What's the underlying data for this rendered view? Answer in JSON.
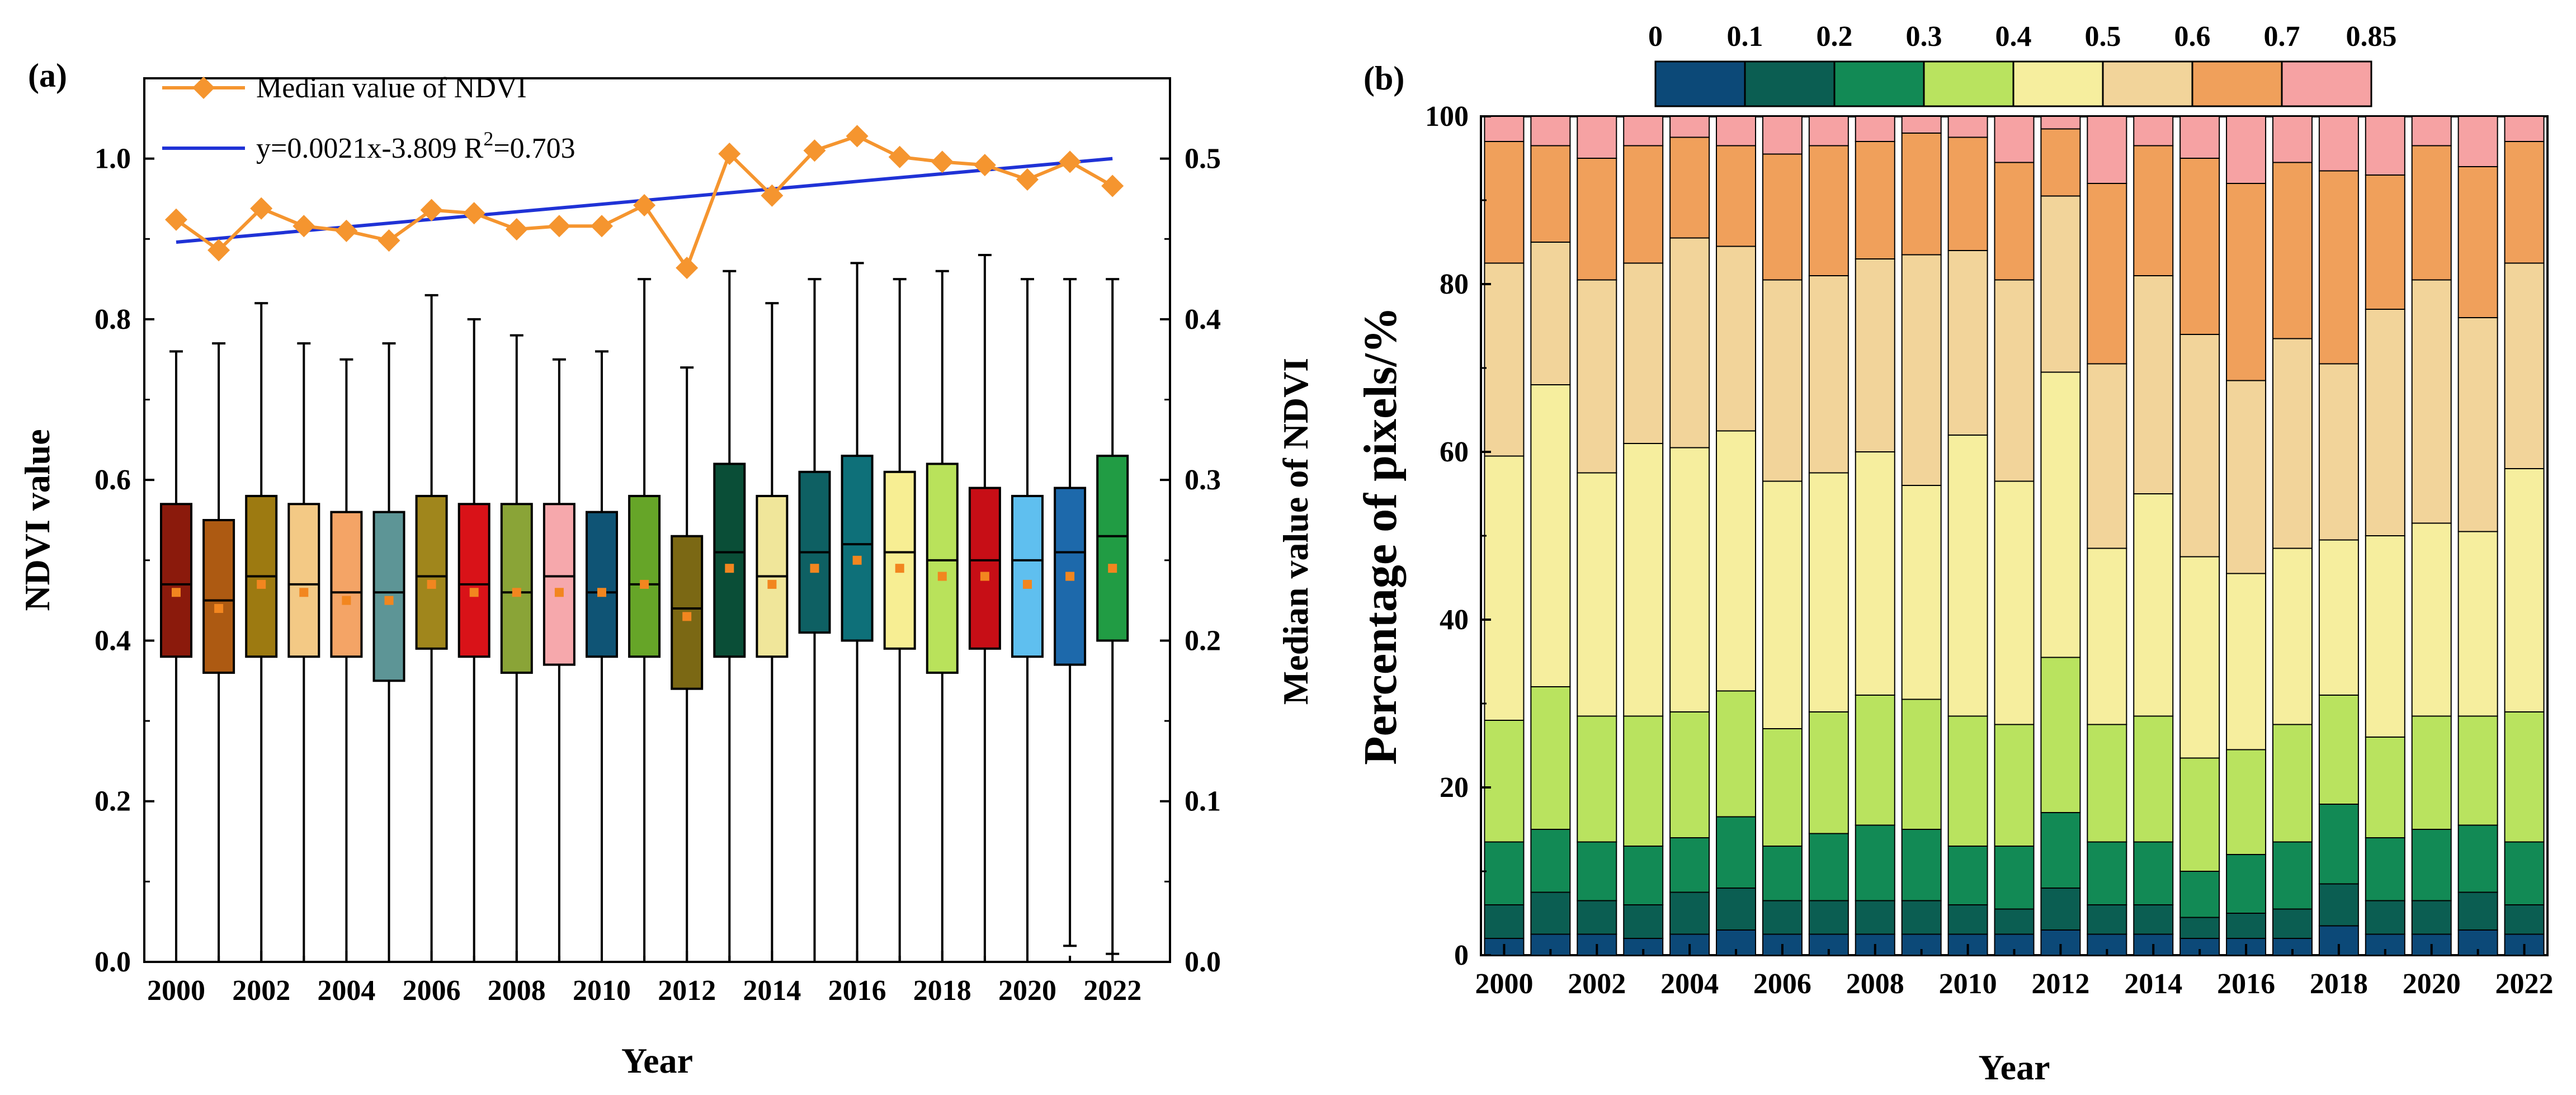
{
  "colors": {
    "median_line": "#F5952F",
    "trend_line": "#1F32D6",
    "mean_marker": "#F2861F",
    "box_fill": [
      "#8B1A0C",
      "#AD5A12",
      "#9D7A11",
      "#F3C985",
      "#F4A466",
      "#5D9596",
      "#A0861C",
      "#D91218",
      "#8AA437",
      "#F6A8AC",
      "#0F5475",
      "#66A528",
      "#7B6814",
      "#0A4E37",
      "#F0E69A",
      "#0E6063",
      "#0E7079",
      "#F7EE93",
      "#B9E25B",
      "#C70E16",
      "#5FBFEF",
      "#1D69AB",
      "#219C44"
    ],
    "class_fill": [
      "#0C4978",
      "#0B5E52",
      "#128A55",
      "#B9E35F",
      "#F6EE9E",
      "#F2D49A",
      "#F0A05B",
      "#F6A2A3"
    ]
  },
  "chart_data": [
    {
      "panel": "(a)",
      "type": "boxplot",
      "xlabel": "Year",
      "ylabel_left": "NDVI value",
      "ylabel_right": "Median value of NDVI",
      "ylim_left": [
        0.0,
        1.1
      ],
      "ylim_right": [
        0.0,
        0.55
      ],
      "yticks_left": [
        "0.0",
        "0.2",
        "0.4",
        "0.6",
        "0.8",
        "1.0"
      ],
      "yticks_right": [
        "0.0",
        "0.1",
        "0.2",
        "0.3",
        "0.4",
        "0.5"
      ],
      "xtick_labels": [
        "2000",
        "2002",
        "2004",
        "2006",
        "2008",
        "2010",
        "2012",
        "2014",
        "2016",
        "2018",
        "2020",
        "2022"
      ],
      "years": [
        2000,
        2001,
        2002,
        2003,
        2004,
        2005,
        2006,
        2007,
        2008,
        2009,
        2010,
        2011,
        2012,
        2013,
        2014,
        2015,
        2016,
        2017,
        2018,
        2019,
        2020,
        2021,
        2022
      ],
      "whisker_low": [
        0.0,
        0.0,
        0.0,
        0.0,
        0.0,
        0.0,
        0.0,
        0.0,
        0.0,
        0.0,
        0.0,
        0.0,
        0.0,
        0.0,
        0.0,
        0.0,
        0.0,
        0.0,
        0.0,
        0.0,
        0.0,
        0.02,
        0.01
      ],
      "q1": [
        0.38,
        0.36,
        0.38,
        0.38,
        0.38,
        0.35,
        0.39,
        0.38,
        0.36,
        0.37,
        0.38,
        0.38,
        0.34,
        0.38,
        0.38,
        0.41,
        0.4,
        0.39,
        0.36,
        0.39,
        0.38,
        0.37,
        0.4
      ],
      "median": [
        0.47,
        0.45,
        0.48,
        0.47,
        0.46,
        0.46,
        0.48,
        0.47,
        0.46,
        0.48,
        0.46,
        0.47,
        0.44,
        0.51,
        0.48,
        0.51,
        0.52,
        0.51,
        0.5,
        0.5,
        0.5,
        0.51,
        0.53
      ],
      "q3": [
        0.57,
        0.55,
        0.58,
        0.57,
        0.56,
        0.56,
        0.58,
        0.57,
        0.57,
        0.57,
        0.56,
        0.58,
        0.53,
        0.62,
        0.58,
        0.61,
        0.63,
        0.61,
        0.62,
        0.59,
        0.58,
        0.59,
        0.63
      ],
      "whisker_high": [
        0.76,
        0.77,
        0.82,
        0.77,
        0.75,
        0.77,
        0.83,
        0.8,
        0.78,
        0.75,
        0.76,
        0.85,
        0.74,
        0.86,
        0.82,
        0.85,
        0.87,
        0.85,
        0.86,
        0.88,
        0.85,
        0.85,
        0.85
      ],
      "mean": [
        0.46,
        0.44,
        0.47,
        0.46,
        0.45,
        0.45,
        0.47,
        0.46,
        0.46,
        0.46,
        0.46,
        0.47,
        0.43,
        0.49,
        0.47,
        0.49,
        0.5,
        0.49,
        0.48,
        0.48,
        0.47,
        0.48,
        0.49
      ],
      "series": [
        {
          "name": "Median value of NDVI",
          "axis": "right",
          "values": [
            0.462,
            0.443,
            0.469,
            0.458,
            0.455,
            0.449,
            0.468,
            0.466,
            0.456,
            0.458,
            0.458,
            0.471,
            0.432,
            0.503,
            0.477,
            0.505,
            0.514,
            0.501,
            0.498,
            0.496,
            0.487,
            0.498,
            0.483
          ]
        },
        {
          "name": "y=0.0021x-3.809 R²=0.703",
          "axis": "right",
          "type": "linear-fit",
          "x": [
            2000,
            2022
          ],
          "values": [
            0.448,
            0.5
          ]
        }
      ],
      "legend": {
        "median": "Median value of NDVI",
        "fit": "y=0.0021x-3.809 R",
        "fit_sup": "2",
        "fit_tail": "=0.703"
      }
    },
    {
      "panel": "(b)",
      "type": "stacked-bar",
      "xlabel": "Year",
      "ylabel": "Percentage of pixels/%",
      "ylim": [
        0,
        100
      ],
      "yticks": [
        "0",
        "20",
        "40",
        "60",
        "80",
        "100"
      ],
      "xtick_labels": [
        "2000",
        "2002",
        "2004",
        "2006",
        "2008",
        "2010",
        "2012",
        "2014",
        "2016",
        "2018",
        "2020",
        "2022"
      ],
      "categories": [
        2000,
        2001,
        2002,
        2003,
        2004,
        2005,
        2006,
        2007,
        2008,
        2009,
        2010,
        2011,
        2012,
        2013,
        2014,
        2015,
        2016,
        2017,
        2018,
        2019,
        2020,
        2021,
        2022
      ],
      "class_breaks": [
        "0",
        "0.1",
        "0.2",
        "0.3",
        "0.4",
        "0.5",
        "0.6",
        "0.7",
        "0.85"
      ],
      "cumulative_boundaries": [
        [
          2.0,
          2.5,
          2.5,
          2.0,
          2.5,
          3.0,
          2.5,
          2.5,
          2.5,
          2.5,
          2.5,
          2.5,
          3.0,
          2.5,
          2.5,
          2.0,
          2.0,
          2.0,
          3.5,
          2.5,
          2.5,
          3.0,
          2.5
        ],
        [
          6.0,
          7.5,
          6.5,
          6.0,
          7.5,
          8.0,
          6.5,
          6.5,
          6.5,
          6.5,
          6.0,
          5.5,
          8.0,
          6.0,
          6.0,
          4.5,
          5.0,
          5.5,
          8.5,
          6.5,
          6.5,
          7.5,
          6.0
        ],
        [
          13.5,
          15.0,
          13.5,
          13.0,
          14.0,
          16.5,
          13.0,
          14.5,
          15.5,
          15.0,
          13.0,
          13.0,
          17.0,
          13.5,
          13.5,
          10.0,
          12.0,
          13.5,
          18.0,
          14.0,
          15.0,
          15.5,
          13.5
        ],
        [
          28.0,
          32.0,
          28.5,
          28.5,
          29.0,
          31.5,
          27.0,
          29.0,
          31.0,
          30.5,
          28.5,
          27.5,
          35.5,
          27.5,
          28.5,
          23.5,
          24.5,
          27.5,
          31.0,
          26.0,
          28.5,
          28.5,
          29.0
        ],
        [
          59.5,
          68.0,
          57.5,
          61.0,
          60.5,
          62.5,
          56.5,
          57.5,
          60.0,
          56.0,
          62.0,
          56.5,
          69.5,
          48.5,
          55.0,
          47.5,
          45.5,
          48.5,
          49.5,
          50.0,
          51.5,
          50.5,
          58.0
        ],
        [
          82.5,
          85.0,
          80.5,
          82.5,
          85.5,
          84.5,
          80.5,
          81.0,
          83.0,
          83.5,
          84.0,
          80.5,
          90.5,
          70.5,
          81.0,
          74.0,
          68.5,
          73.5,
          70.5,
          77.0,
          80.5,
          76.0,
          82.5
        ],
        [
          97.0,
          96.5,
          95.0,
          96.5,
          97.5,
          96.5,
          95.5,
          96.5,
          97.0,
          98.0,
          97.5,
          94.5,
          98.5,
          92.0,
          96.5,
          95.0,
          92.0,
          94.5,
          93.5,
          93.0,
          96.5,
          94.0,
          97.0
        ]
      ]
    }
  ]
}
